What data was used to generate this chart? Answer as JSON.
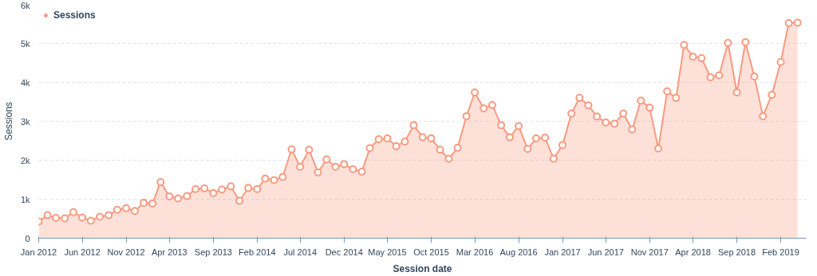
{
  "chart_data": {
    "type": "area",
    "xlabel": "Session date",
    "ylabel": "Sessions",
    "x": [
      "2012-01",
      "2012-02",
      "2012-03",
      "2012-04",
      "2012-05",
      "2012-06",
      "2012-07",
      "2012-08",
      "2012-09",
      "2012-10",
      "2012-11",
      "2012-12",
      "2013-01",
      "2013-02",
      "2013-03",
      "2013-04",
      "2013-05",
      "2013-06",
      "2013-07",
      "2013-08",
      "2013-09",
      "2013-10",
      "2013-11",
      "2013-12",
      "2014-01",
      "2014-02",
      "2014-03",
      "2014-04",
      "2014-05",
      "2014-06",
      "2014-07",
      "2014-08",
      "2014-09",
      "2014-10",
      "2014-11",
      "2014-12",
      "2015-01",
      "2015-02",
      "2015-03",
      "2015-04",
      "2015-05",
      "2015-06",
      "2015-07",
      "2015-08",
      "2015-09",
      "2015-10",
      "2015-11",
      "2015-12",
      "2016-01",
      "2016-02",
      "2016-03",
      "2016-04",
      "2016-05",
      "2016-06",
      "2016-07",
      "2016-08",
      "2016-09",
      "2016-10",
      "2016-11",
      "2016-12",
      "2017-01",
      "2017-02",
      "2017-03",
      "2017-04",
      "2017-05",
      "2017-06",
      "2017-07",
      "2017-08",
      "2017-09",
      "2017-10",
      "2017-11",
      "2017-12",
      "2018-01",
      "2018-02",
      "2018-03",
      "2018-04",
      "2018-05",
      "2018-06",
      "2018-07",
      "2018-08",
      "2018-09",
      "2018-10",
      "2018-11",
      "2018-12",
      "2019-01",
      "2019-02",
      "2019-03",
      "2019-04"
    ],
    "series": [
      {
        "name": "Sessions",
        "color": "#f99a80",
        "values": [
          430,
          590,
          520,
          510,
          670,
          530,
          450,
          550,
          590,
          730,
          770,
          700,
          910,
          890,
          1440,
          1070,
          1020,
          1080,
          1260,
          1280,
          1160,
          1250,
          1330,
          960,
          1290,
          1260,
          1530,
          1490,
          1570,
          2280,
          1830,
          2270,
          1690,
          2020,
          1830,
          1900,
          1770,
          1710,
          2310,
          2540,
          2560,
          2360,
          2480,
          2900,
          2590,
          2560,
          2270,
          2040,
          2320,
          3130,
          3740,
          3330,
          3420,
          2900,
          2590,
          2880,
          2290,
          2560,
          2580,
          2040,
          2390,
          3200,
          3600,
          3410,
          3120,
          2970,
          2940,
          3200,
          2790,
          3530,
          3350,
          2300,
          3770,
          3600,
          4960,
          4660,
          4620,
          4130,
          4180,
          5010,
          3740,
          5030,
          4150,
          3130,
          3680,
          4520,
          5520,
          5530
        ]
      }
    ],
    "xlim": [
      "2012-01",
      "2019-05"
    ],
    "xticks": [
      {
        "value": "2012-01",
        "label": "Jan 2012"
      },
      {
        "value": "2012-06",
        "label": "Jun 2012"
      },
      {
        "value": "2012-11",
        "label": "Nov 2012"
      },
      {
        "value": "2013-04",
        "label": "Apr 2013"
      },
      {
        "value": "2013-09",
        "label": "Sep 2013"
      },
      {
        "value": "2014-02",
        "label": "Feb 2014"
      },
      {
        "value": "2014-07",
        "label": "Jul 2014"
      },
      {
        "value": "2014-12",
        "label": "Dec 2014"
      },
      {
        "value": "2015-05",
        "label": "May 2015"
      },
      {
        "value": "2015-10",
        "label": "Oct 2015"
      },
      {
        "value": "2016-03",
        "label": "Mar 2016"
      },
      {
        "value": "2016-08",
        "label": "Aug 2016"
      },
      {
        "value": "2017-01",
        "label": "Jan 2017"
      },
      {
        "value": "2017-06",
        "label": "Jun 2017"
      },
      {
        "value": "2017-11",
        "label": "Nov 2017"
      },
      {
        "value": "2018-04",
        "label": "Apr 2018"
      },
      {
        "value": "2018-09",
        "label": "Sep 2018"
      },
      {
        "value": "2019-02",
        "label": "Feb 2019"
      }
    ],
    "ylim": [
      0,
      6000
    ],
    "yticks": [
      0,
      {
        "value": 1000,
        "label": "1k"
      },
      {
        "value": 2000,
        "label": "2k"
      },
      {
        "value": 3000,
        "label": "3k"
      },
      {
        "value": 4000,
        "label": "4k"
      },
      {
        "value": 5000,
        "label": "5k"
      },
      {
        "value": 6000,
        "label": "6k"
      }
    ],
    "grid": "y",
    "legend": "top left",
    "marker": "circle",
    "line_style": "solid"
  }
}
